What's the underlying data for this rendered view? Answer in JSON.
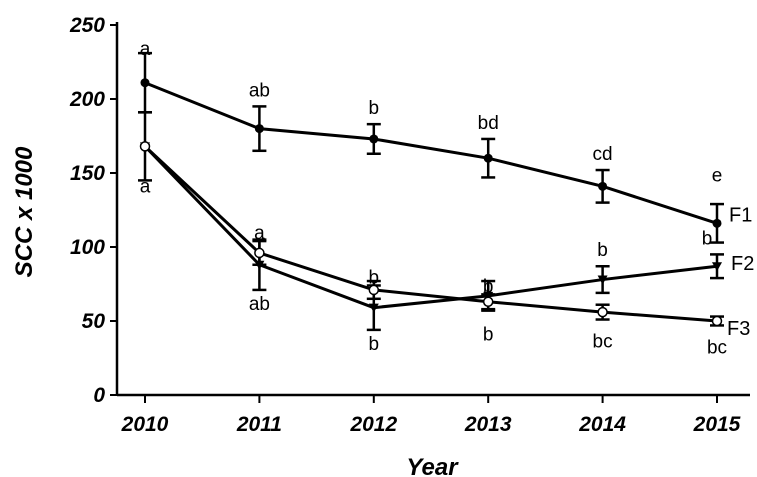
{
  "chart_data": {
    "type": "line",
    "xlabel": "Year",
    "ylabel": "SCC x 1000",
    "ylim": [
      0,
      250
    ],
    "yticks": [
      0,
      50,
      100,
      150,
      200,
      250
    ],
    "categories": [
      "2010",
      "2011",
      "2012",
      "2013",
      "2014",
      "2015"
    ],
    "grid": false,
    "series": [
      {
        "name": "F1",
        "marker": "filled-circle",
        "values": [
          211,
          180,
          173,
          160,
          141,
          116
        ],
        "errors": [
          20,
          15,
          10,
          13,
          11,
          13
        ],
        "labels": [
          "a",
          "ab",
          "b",
          "bd",
          "cd",
          "e"
        ]
      },
      {
        "name": "F2",
        "marker": "filled-triangle-down",
        "values": [
          168,
          88,
          59,
          67,
          78,
          87
        ],
        "errors": [
          23,
          17,
          15,
          10,
          9,
          8
        ],
        "labels": [
          "a",
          "ab",
          "b",
          "b",
          "b",
          "b"
        ]
      },
      {
        "name": "F3",
        "marker": "open-circle",
        "values": [
          168,
          96,
          71,
          63,
          56,
          50
        ],
        "errors": [
          0,
          8,
          6,
          5,
          5,
          3
        ],
        "labels": [
          "",
          "a",
          "b",
          "b",
          "bc",
          "bc"
        ]
      }
    ]
  }
}
